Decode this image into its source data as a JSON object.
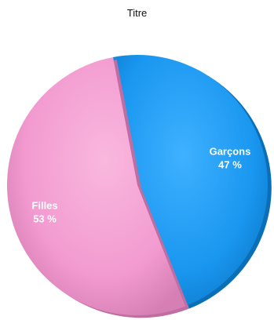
{
  "chart_data": {
    "type": "pie",
    "title": "Titre",
    "slices": [
      {
        "label": "Garçons",
        "value": 47,
        "value_label": "47 %",
        "color": "#1a97f0"
      },
      {
        "label": "Filles",
        "value": 53,
        "value_label": "53 %",
        "color": "#f29ad0"
      }
    ],
    "legend": "none"
  }
}
